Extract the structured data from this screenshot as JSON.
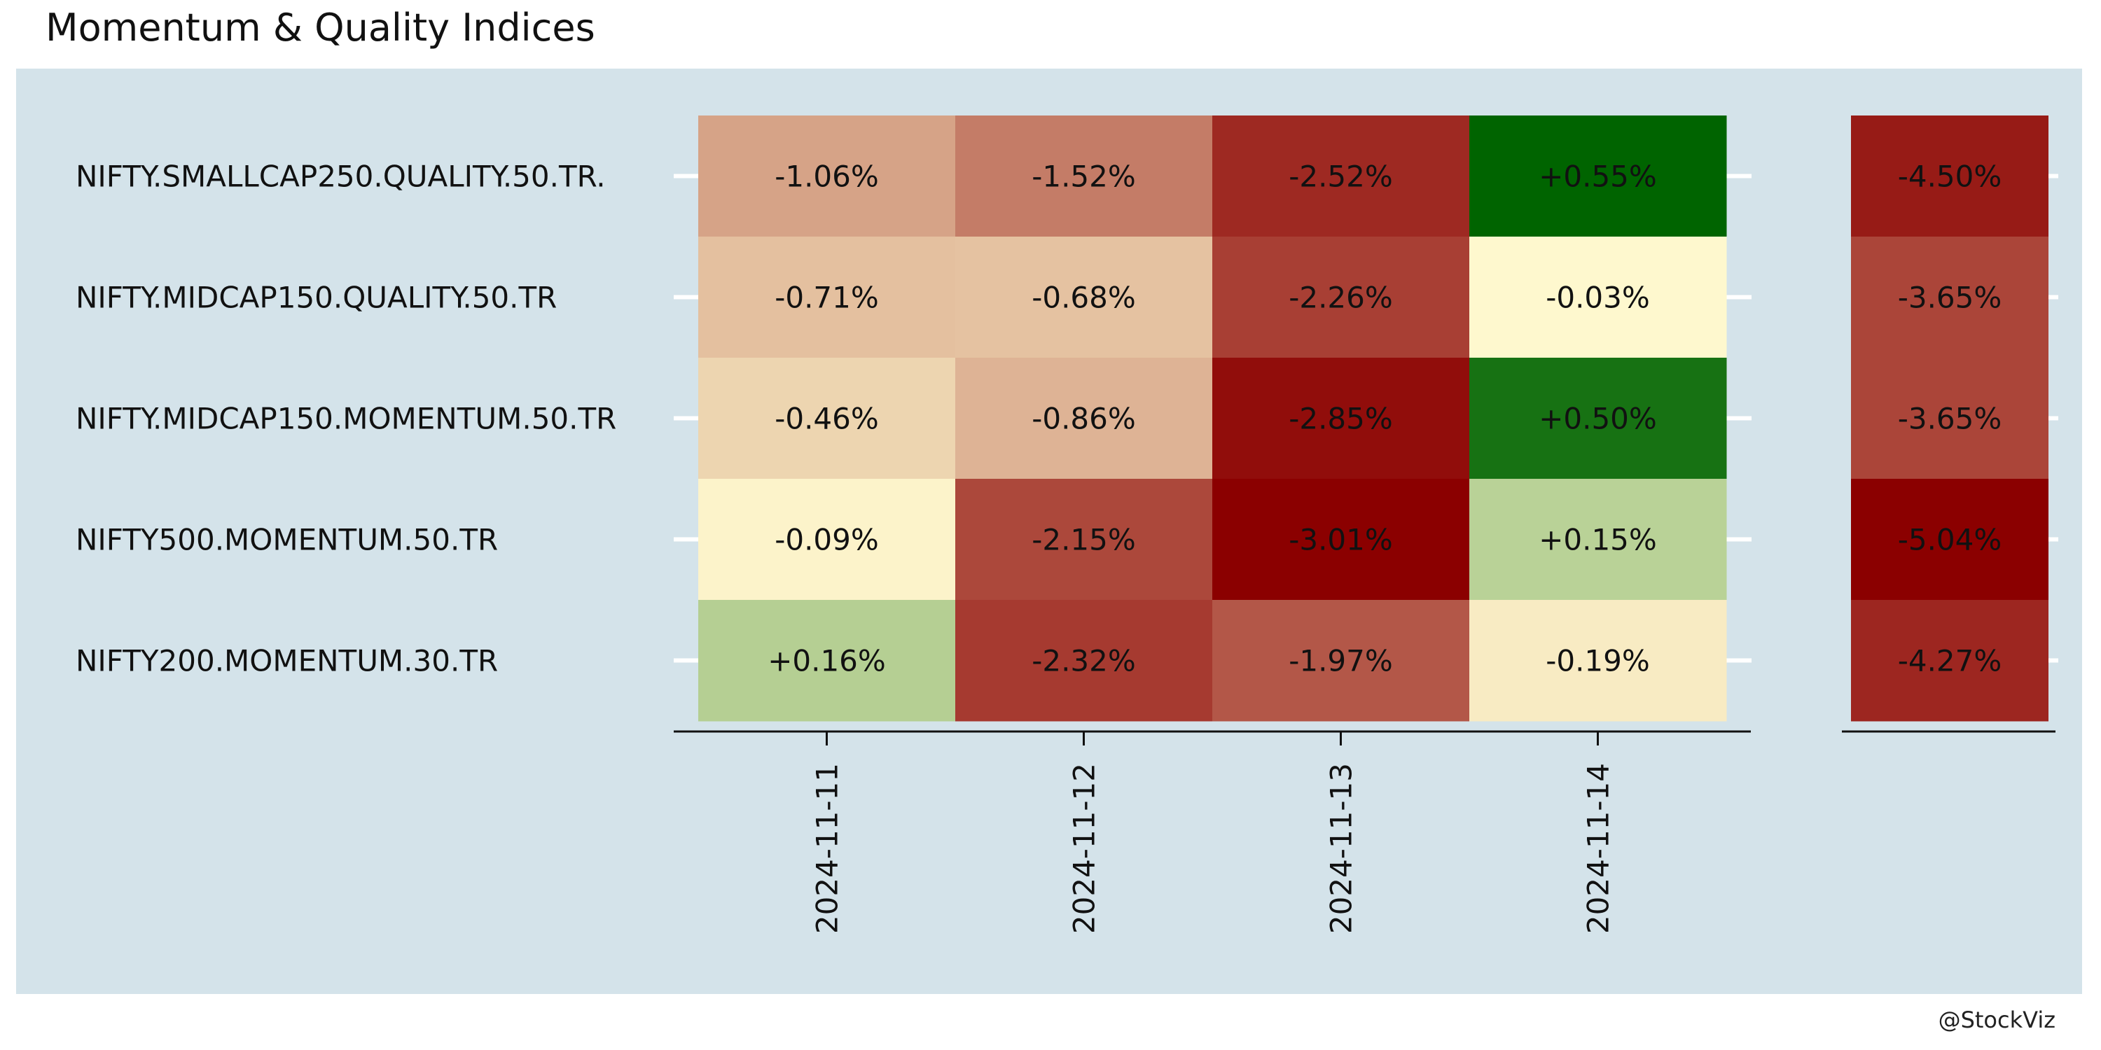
{
  "chart_data": {
    "type": "heatmap",
    "title": "Momentum & Quality Indices",
    "caption": "@StockViz",
    "colors": {
      "panel_background": "#d4e3ea",
      "page_background": "#ffffff",
      "negative_strong": "#8b0000",
      "neutral": "#fffbd0",
      "positive_strong": "#006400",
      "text": "#111111"
    },
    "rows": [
      "NIFTY.SMALLCAP250.QUALITY.50.TR.",
      "NIFTY.MIDCAP150.QUALITY.50.TR",
      "NIFTY.MIDCAP150.MOMENTUM.50.TR",
      "NIFTY500.MOMENTUM.50.TR",
      "NIFTY200.MOMENTUM.30.TR"
    ],
    "columns": [
      "2024-11-11",
      "2024-11-12",
      "2024-11-13",
      "2024-11-14"
    ],
    "values": [
      [
        -1.06,
        -1.52,
        -2.52,
        0.55
      ],
      [
        -0.71,
        -0.68,
        -2.26,
        -0.03
      ],
      [
        -0.46,
        -0.86,
        -2.85,
        0.5
      ],
      [
        -0.09,
        -2.15,
        -3.01,
        0.15
      ],
      [
        0.16,
        -2.32,
        -1.97,
        -0.19
      ]
    ],
    "labels": [
      [
        "-1.06%",
        "-1.52%",
        "-2.52%",
        "+0.55%"
      ],
      [
        "-0.71%",
        "-0.68%",
        "-2.26%",
        "-0.03%"
      ],
      [
        "-0.46%",
        "-0.86%",
        "-2.85%",
        "+0.50%"
      ],
      [
        "-0.09%",
        "-2.15%",
        "-3.01%",
        "+0.15%"
      ],
      [
        "+0.16%",
        "-2.32%",
        "-1.97%",
        "-0.19%"
      ]
    ],
    "totals": {
      "values": [
        -4.5,
        -3.65,
        -3.65,
        -5.04,
        -4.27
      ],
      "labels": [
        "-4.50%",
        "-3.65%",
        "-3.65%",
        "-5.04%",
        "-4.27%"
      ]
    }
  }
}
